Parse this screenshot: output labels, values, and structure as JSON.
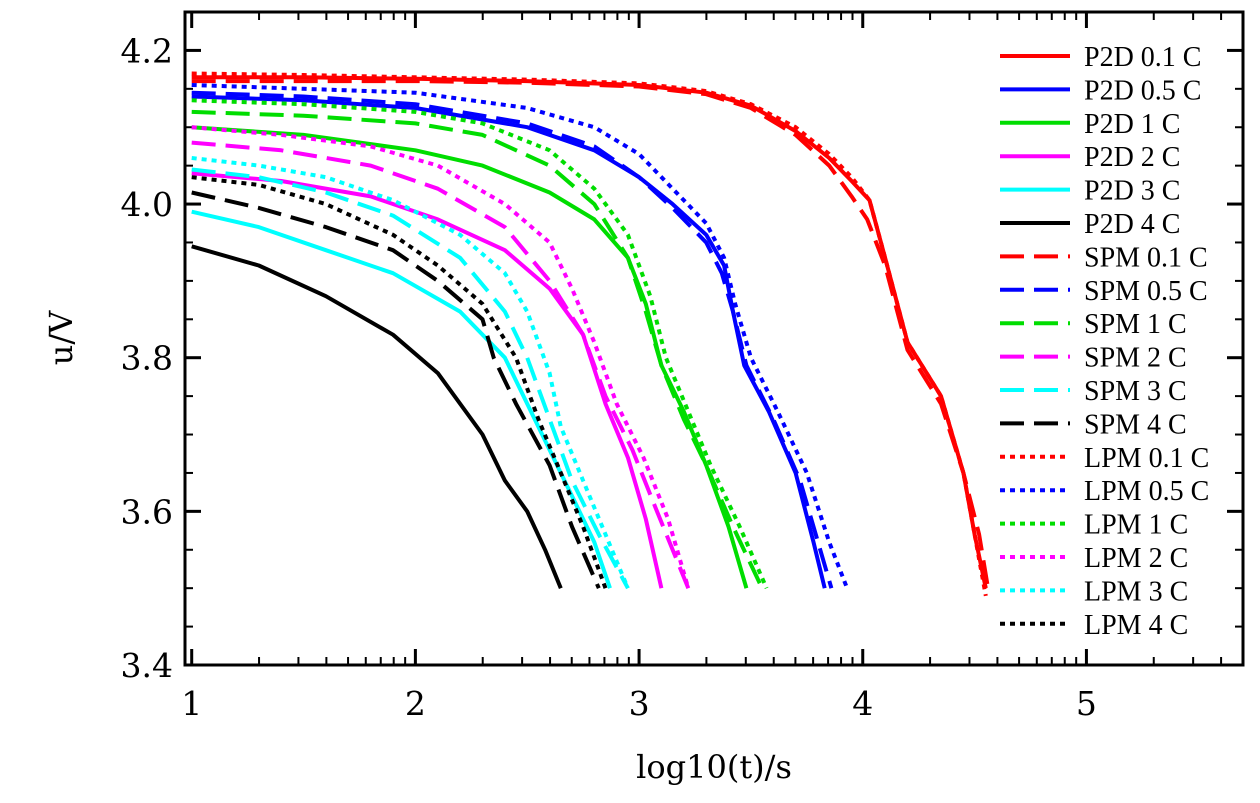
{
  "chart_data": {
    "type": "line",
    "xlabel": "log10(t)/s",
    "ylabel": "u/V",
    "xlim": [
      0.97,
      5.7
    ],
    "ylim": [
      3.4,
      4.25
    ],
    "x_ticks": [
      1,
      2,
      3,
      4,
      5
    ],
    "x_tick_labels": [
      "1",
      "2",
      "3",
      "4",
      "5"
    ],
    "y_ticks": [
      3.4,
      3.6,
      3.8,
      4.0,
      4.2
    ],
    "y_tick_labels": [
      "3.4",
      "3.6",
      "3.8",
      "4.0",
      "4.2"
    ],
    "grid": false,
    "legend_position": "top-right",
    "colors": {
      "red": "#ff0000",
      "blue": "#0000ff",
      "green": "#00dd00",
      "magenta": "#ff00ff",
      "cyan": "#00ffff",
      "black": "#000000"
    },
    "series": [
      {
        "name": "P2D 0.1 C",
        "color": "#ff0000",
        "dash": "solid",
        "x": [
          1,
          1.5,
          2,
          2.5,
          3,
          3.3,
          3.5,
          3.7,
          3.85,
          3.95,
          4.03,
          4.1,
          4.2,
          4.35,
          4.45,
          4.5,
          4.55
        ],
        "y": [
          4.165,
          4.165,
          4.163,
          4.16,
          4.155,
          4.145,
          4.128,
          4.095,
          4.06,
          4.03,
          4.005,
          3.93,
          3.82,
          3.75,
          3.65,
          3.57,
          3.5
        ]
      },
      {
        "name": "P2D 0.5 C",
        "color": "#0000ff",
        "dash": "solid",
        "x": [
          1,
          1.5,
          2,
          2.5,
          2.8,
          3.0,
          3.15,
          3.3,
          3.38,
          3.42,
          3.47,
          3.58,
          3.7,
          3.78,
          3.83
        ],
        "y": [
          4.14,
          4.135,
          4.125,
          4.1,
          4.07,
          4.035,
          4.0,
          3.96,
          3.92,
          3.86,
          3.79,
          3.73,
          3.65,
          3.56,
          3.5
        ]
      },
      {
        "name": "P2D 1 C",
        "color": "#00dd00",
        "dash": "solid",
        "x": [
          1,
          1.5,
          2,
          2.3,
          2.6,
          2.8,
          2.95,
          3.03,
          3.1,
          3.2,
          3.3,
          3.4,
          3.48
        ],
        "y": [
          4.1,
          4.09,
          4.07,
          4.05,
          4.015,
          3.98,
          3.93,
          3.87,
          3.79,
          3.73,
          3.66,
          3.58,
          3.5
        ]
      },
      {
        "name": "P2D 2 C",
        "color": "#ff00ff",
        "dash": "solid",
        "x": [
          1,
          1.4,
          1.8,
          2.1,
          2.4,
          2.6,
          2.75,
          2.85,
          2.95,
          3.03,
          3.1
        ],
        "y": [
          4.04,
          4.03,
          4.01,
          3.98,
          3.94,
          3.89,
          3.83,
          3.74,
          3.67,
          3.59,
          3.5
        ]
      },
      {
        "name": "P2D 3 C",
        "color": "#00ffff",
        "dash": "solid",
        "x": [
          1,
          1.3,
          1.6,
          1.9,
          2.2,
          2.4,
          2.5,
          2.6,
          2.7,
          2.8,
          2.87
        ],
        "y": [
          3.99,
          3.97,
          3.94,
          3.91,
          3.86,
          3.8,
          3.74,
          3.68,
          3.62,
          3.56,
          3.5
        ]
      },
      {
        "name": "P2D 4 C",
        "color": "#000000",
        "dash": "solid",
        "x": [
          1,
          1.3,
          1.6,
          1.9,
          2.1,
          2.3,
          2.4,
          2.5,
          2.58,
          2.65
        ],
        "y": [
          3.945,
          3.92,
          3.88,
          3.83,
          3.78,
          3.7,
          3.64,
          3.6,
          3.55,
          3.5
        ]
      },
      {
        "name": "SPM 0.1 C",
        "color": "#ff0000",
        "dash": "dashed",
        "x": [
          1,
          1.5,
          2,
          2.5,
          3,
          3.3,
          3.5,
          3.7,
          3.85,
          3.95,
          4.02,
          4.1,
          4.2,
          4.35,
          4.45,
          4.52,
          4.56
        ],
        "y": [
          4.16,
          4.16,
          4.16,
          4.158,
          4.153,
          4.143,
          4.125,
          4.09,
          4.05,
          4.01,
          3.98,
          3.92,
          3.81,
          3.74,
          3.65,
          3.57,
          3.5
        ]
      },
      {
        "name": "SPM 0.5 C",
        "color": "#0000ff",
        "dash": "dashed",
        "x": [
          1,
          1.5,
          2,
          2.5,
          2.8,
          3.0,
          3.15,
          3.3,
          3.37,
          3.42,
          3.48,
          3.6,
          3.72,
          3.8,
          3.86
        ],
        "y": [
          4.145,
          4.14,
          4.13,
          4.105,
          4.075,
          4.035,
          3.995,
          3.95,
          3.91,
          3.86,
          3.79,
          3.72,
          3.64,
          3.56,
          3.5
        ]
      },
      {
        "name": "SPM 1 C",
        "color": "#00dd00",
        "dash": "dashed",
        "x": [
          1,
          1.5,
          2,
          2.3,
          2.6,
          2.8,
          2.95,
          3.03,
          3.1,
          3.2,
          3.3,
          3.42,
          3.55
        ],
        "y": [
          4.12,
          4.115,
          4.105,
          4.09,
          4.05,
          4.0,
          3.93,
          3.86,
          3.79,
          3.72,
          3.66,
          3.58,
          3.5
        ]
      },
      {
        "name": "SPM 2 C",
        "color": "#ff00ff",
        "dash": "dashed",
        "x": [
          1,
          1.4,
          1.8,
          2.1,
          2.4,
          2.6,
          2.75,
          2.85,
          2.97,
          3.08,
          3.22
        ],
        "y": [
          4.08,
          4.07,
          4.05,
          4.02,
          3.97,
          3.9,
          3.83,
          3.75,
          3.68,
          3.6,
          3.5
        ]
      },
      {
        "name": "SPM 3 C",
        "color": "#00ffff",
        "dash": "dashed",
        "x": [
          1,
          1.3,
          1.6,
          1.9,
          2.2,
          2.4,
          2.5,
          2.6,
          2.7,
          2.82,
          2.95
        ],
        "y": [
          4.045,
          4.035,
          4.015,
          3.985,
          3.93,
          3.86,
          3.8,
          3.72,
          3.64,
          3.57,
          3.5
        ]
      },
      {
        "name": "SPM 4 C",
        "color": "#000000",
        "dash": "dashed",
        "x": [
          1,
          1.3,
          1.6,
          1.9,
          2.1,
          2.3,
          2.35,
          2.45,
          2.6,
          2.7,
          2.82
        ],
        "y": [
          4.015,
          3.995,
          3.97,
          3.94,
          3.9,
          3.85,
          3.8,
          3.74,
          3.66,
          3.58,
          3.5
        ]
      },
      {
        "name": "LPM 0.1 C",
        "color": "#ff0000",
        "dash": "dotted",
        "x": [
          1,
          1.5,
          2,
          2.5,
          3,
          3.3,
          3.5,
          3.7,
          3.85,
          3.95,
          4.03,
          4.1,
          4.2,
          4.35,
          4.45,
          4.5,
          4.55
        ],
        "y": [
          4.17,
          4.168,
          4.165,
          4.162,
          4.157,
          4.147,
          4.13,
          4.1,
          4.065,
          4.035,
          4.005,
          3.93,
          3.82,
          3.75,
          3.65,
          3.57,
          3.49
        ]
      },
      {
        "name": "LPM 0.5 C",
        "color": "#0000ff",
        "dash": "dotted",
        "x": [
          1,
          1.5,
          2,
          2.5,
          2.8,
          3.0,
          3.15,
          3.3,
          3.38,
          3.43,
          3.5,
          3.62,
          3.75,
          3.85,
          3.93
        ],
        "y": [
          4.155,
          4.15,
          4.145,
          4.125,
          4.1,
          4.065,
          4.02,
          3.975,
          3.93,
          3.87,
          3.8,
          3.73,
          3.65,
          3.56,
          3.5
        ]
      },
      {
        "name": "LPM 1 C",
        "color": "#00dd00",
        "dash": "dotted",
        "x": [
          1,
          1.5,
          2,
          2.3,
          2.6,
          2.8,
          2.95,
          3.05,
          3.12,
          3.22,
          3.32,
          3.45,
          3.57
        ],
        "y": [
          4.135,
          4.13,
          4.12,
          4.105,
          4.07,
          4.02,
          3.96,
          3.88,
          3.8,
          3.73,
          3.66,
          3.58,
          3.5
        ]
      },
      {
        "name": "LPM 2 C",
        "color": "#ff00ff",
        "dash": "dotted",
        "x": [
          1,
          1.4,
          1.8,
          2.1,
          2.4,
          2.6,
          2.7,
          2.8,
          2.9,
          3.02,
          3.13,
          3.22
        ],
        "y": [
          4.1,
          4.09,
          4.075,
          4.05,
          4.0,
          3.95,
          3.89,
          3.82,
          3.74,
          3.67,
          3.59,
          3.5
        ]
      },
      {
        "name": "LPM 3 C",
        "color": "#00ffff",
        "dash": "dotted",
        "x": [
          1,
          1.3,
          1.6,
          1.9,
          2.2,
          2.4,
          2.5,
          2.6,
          2.65,
          2.75,
          2.85,
          2.95
        ],
        "y": [
          4.06,
          4.05,
          4.035,
          4.005,
          3.96,
          3.91,
          3.86,
          3.78,
          3.71,
          3.64,
          3.57,
          3.5
        ]
      },
      {
        "name": "LPM 4 C",
        "color": "#000000",
        "dash": "dotted",
        "x": [
          1,
          1.3,
          1.6,
          1.9,
          2.1,
          2.3,
          2.45,
          2.55,
          2.65,
          2.75,
          2.85
        ],
        "y": [
          4.035,
          4.025,
          4.0,
          3.96,
          3.92,
          3.87,
          3.8,
          3.72,
          3.65,
          3.58,
          3.5
        ]
      }
    ]
  }
}
